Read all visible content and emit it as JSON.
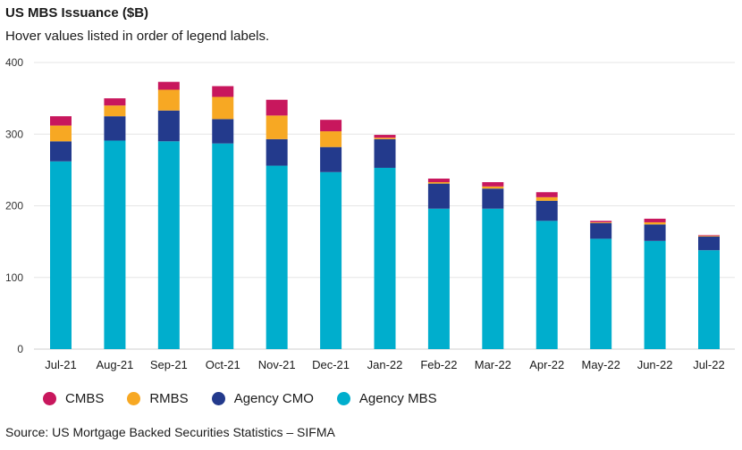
{
  "header": {
    "title": "US MBS Issuance ($B)",
    "subtitle": "Hover values listed in order of legend labels."
  },
  "footer": {
    "source": "Source: US Mortgage Backed Securities Statistics – SIFMA"
  },
  "chart_data": {
    "type": "bar",
    "stacked": true,
    "title": "US MBS Issuance ($B)",
    "xlabel": "",
    "ylabel": "",
    "ylim": [
      0,
      400
    ],
    "yticks": [
      0,
      100,
      200,
      300,
      400
    ],
    "grid": true,
    "legend_position": "bottom-left",
    "categories": [
      "Jul-21",
      "Aug-21",
      "Sep-21",
      "Oct-21",
      "Nov-21",
      "Dec-21",
      "Jan-22",
      "Feb-22",
      "Mar-22",
      "Apr-22",
      "May-22",
      "Jun-22",
      "Jul-22"
    ],
    "series": [
      {
        "name": "CMBS",
        "color": "#c8175d",
        "values": [
          13,
          10,
          11,
          15,
          22,
          16,
          4,
          5,
          6,
          7,
          2,
          5,
          1
        ]
      },
      {
        "name": "RMBS",
        "color": "#f7a823",
        "values": [
          22,
          15,
          29,
          31,
          33,
          22,
          2,
          2,
          3,
          5,
          1,
          3,
          1
        ]
      },
      {
        "name": "Agency CMO",
        "color": "#233a8c",
        "values": [
          28,
          34,
          43,
          34,
          37,
          35,
          40,
          35,
          28,
          28,
          22,
          23,
          19
        ]
      },
      {
        "name": "Agency MBS",
        "color": "#00aecd",
        "values": [
          262,
          291,
          290,
          287,
          256,
          247,
          253,
          196,
          196,
          179,
          154,
          151,
          138
        ]
      }
    ],
    "legend_order": [
      "CMBS",
      "RMBS",
      "Agency CMO",
      "Agency MBS"
    ]
  }
}
